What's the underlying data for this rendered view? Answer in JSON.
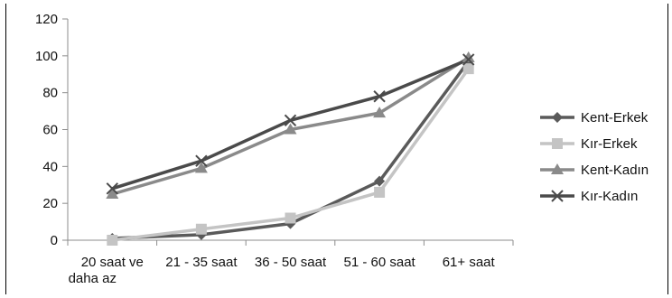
{
  "chart_data": {
    "type": "line",
    "title": "",
    "xlabel": "",
    "ylabel": "",
    "categories": [
      [
        "20 saat ve",
        "daha az"
      ],
      [
        "21 - 35 saat"
      ],
      [
        "36 - 50 saat"
      ],
      [
        "51 - 60 saat"
      ],
      [
        "61+ saat"
      ]
    ],
    "ylim": [
      0,
      120
    ],
    "yticks": [
      0,
      20,
      40,
      60,
      80,
      100,
      120
    ],
    "grid": false,
    "legend_position": "right",
    "series": [
      {
        "name": "Kent-Erkek",
        "values": [
          1,
          3,
          9,
          32,
          97
        ],
        "color": "#5a5a5a",
        "marker": "diamond"
      },
      {
        "name": "Kır-Erkek",
        "values": [
          0,
          6,
          12,
          26,
          93
        ],
        "color": "#c4c4c4",
        "marker": "square"
      },
      {
        "name": "Kent-Kadın",
        "values": [
          25,
          39,
          60,
          69,
          99
        ],
        "color": "#8a8a8a",
        "marker": "triangle"
      },
      {
        "name": "Kır-Kadın",
        "values": [
          28,
          43,
          65,
          78,
          98
        ],
        "color": "#4a4a4a",
        "marker": "x"
      }
    ]
  }
}
